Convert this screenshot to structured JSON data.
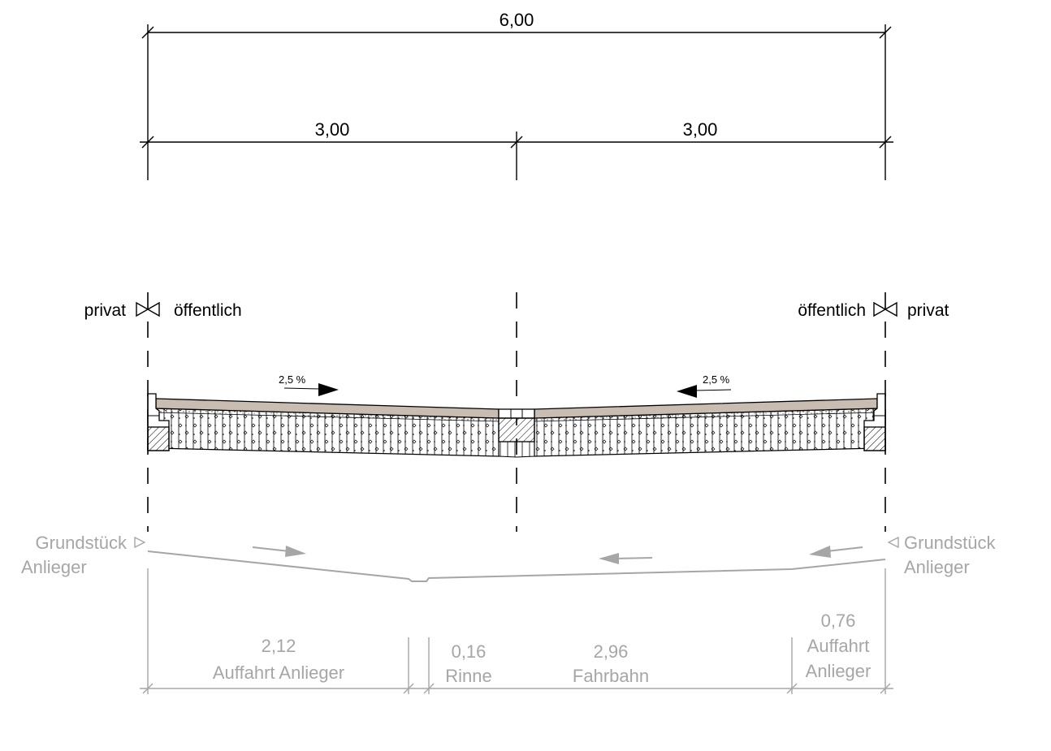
{
  "top_dimensions": {
    "total": "6,00",
    "left": "3,00",
    "right": "3,00"
  },
  "boundary_labels": {
    "left_outer": "privat",
    "left_inner": "öffentlich",
    "right_inner": "öffentlich",
    "right_outer": "privat"
  },
  "slopes": {
    "left": "2,5 %",
    "right": "2,5 %"
  },
  "profile": {
    "left_label_line1": "Grundstück",
    "left_label_line2": "Anlieger",
    "right_label_line1": "Grundstück",
    "right_label_line2": "Anlieger"
  },
  "bottom_dimensions": {
    "seg1_value": "2,12",
    "seg1_name": "Auffahrt Anlieger",
    "seg2_value": "0,16",
    "seg2_name": "Rinne",
    "seg3_value": "2,96",
    "seg3_name": "Fahrbahn",
    "seg4_value": "0,76",
    "seg4_name_line1": "Auffahrt",
    "seg4_name_line2": "Anlieger"
  },
  "colors": {
    "line": "#000000",
    "surface": "#c9bcb0",
    "grey": "#a6a6a6"
  }
}
